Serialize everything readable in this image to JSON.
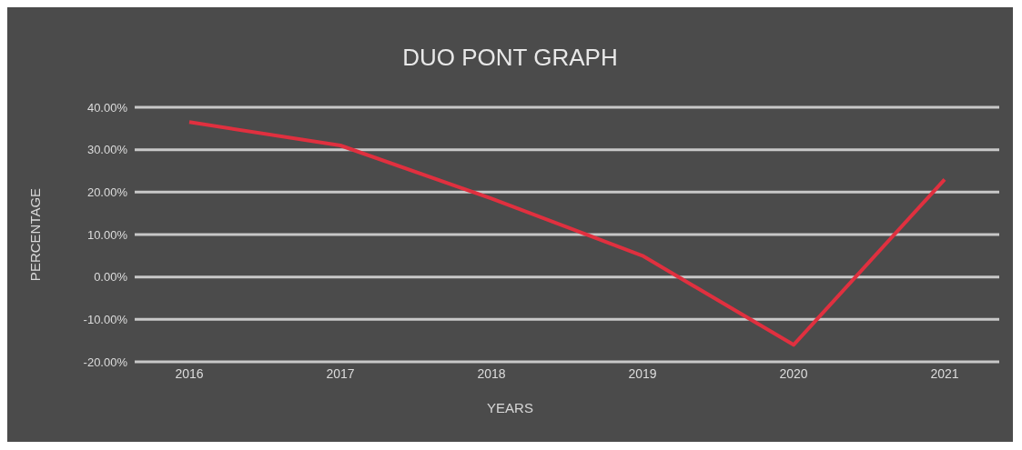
{
  "chart_data": {
    "type": "line",
    "title": "DUO PONT GRAPH",
    "xlabel": "YEARS",
    "ylabel": "PERCENTAGE",
    "categories": [
      "2016",
      "2017",
      "2018",
      "2019",
      "2020",
      "2021"
    ],
    "series": [
      {
        "color": "#e0303f",
        "values": [
          36.5,
          31,
          18.5,
          5,
          -16,
          23
        ]
      }
    ],
    "ylim": [
      -20,
      40
    ],
    "yticks": [
      {
        "value": -20,
        "label": "-20.00%"
      },
      {
        "value": -10,
        "label": "-10.00%"
      },
      {
        "value": 0,
        "label": "0.00%"
      },
      {
        "value": 10,
        "label": "10.00%"
      },
      {
        "value": 20,
        "label": "20.00%"
      },
      {
        "value": 30,
        "label": "30.00%"
      },
      {
        "value": 40,
        "label": "40.00%"
      }
    ],
    "grid": "y",
    "legend": false,
    "marker": "none",
    "line_style": "solid"
  }
}
